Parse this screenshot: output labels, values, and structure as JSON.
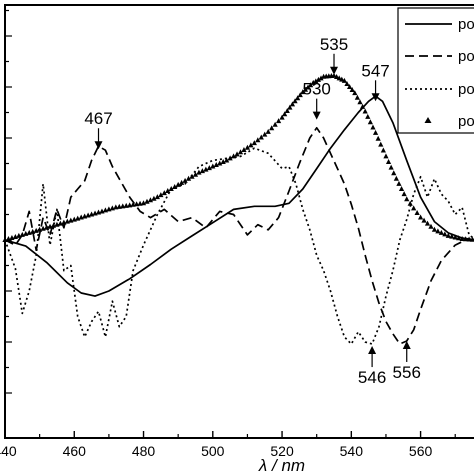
{
  "chart_data": {
    "type": "line",
    "title": "",
    "xlabel": "λ / nm",
    "ylabel": "",
    "xlim": [
      440,
      576
    ],
    "ylim": [
      -1.6,
      2.35
    ],
    "grid": false,
    "legend_placement": "top-right",
    "x_ticks": [
      440,
      460,
      480,
      500,
      520,
      540,
      560
    ],
    "x_tick_labels": [
      "440",
      "460",
      "480",
      "500",
      "520",
      "540",
      "560"
    ],
    "legend": [
      "po",
      "po",
      "po",
      "po"
    ],
    "annotations": [
      {
        "text": "467",
        "x": 467,
        "y": 0.88
      },
      {
        "text": "530",
        "x": 530,
        "y": 1.17
      },
      {
        "text": "535",
        "x": 535,
        "y": 1.61
      },
      {
        "text": "547",
        "x": 547,
        "y": 1.35
      },
      {
        "text": "546",
        "x": 546,
        "y": -1.03
      },
      {
        "text": "556",
        "x": 556,
        "y": -0.98
      }
    ],
    "series": [
      {
        "style": "solid",
        "x": [
          440,
          446,
          452,
          458,
          462,
          466,
          470,
          476,
          482,
          488,
          494,
          500,
          506,
          512,
          518,
          522,
          526,
          530,
          534,
          538,
          542,
          545,
          547,
          549,
          552,
          556,
          560,
          564,
          568,
          572,
          576
        ],
        "y": [
          0.0,
          -0.06,
          -0.22,
          -0.42,
          -0.52,
          -0.55,
          -0.5,
          -0.38,
          -0.24,
          -0.09,
          0.04,
          0.17,
          0.3,
          0.33,
          0.33,
          0.36,
          0.5,
          0.7,
          0.9,
          1.08,
          1.25,
          1.36,
          1.41,
          1.36,
          1.15,
          0.78,
          0.42,
          0.18,
          0.07,
          0.02,
          0.0
        ]
      },
      {
        "style": "dashed",
        "x": [
          440,
          443,
          445,
          447,
          449,
          451,
          453,
          455,
          457,
          459,
          461,
          463,
          465,
          467,
          469,
          471,
          473,
          476,
          479,
          482,
          486,
          490,
          494,
          498,
          502,
          506,
          510,
          513,
          516,
          519,
          522,
          525,
          528,
          530,
          532,
          534,
          536,
          538,
          540,
          542,
          544,
          546,
          548,
          550,
          552,
          554,
          556,
          558,
          560,
          563,
          566,
          570,
          573,
          576
        ],
        "y": [
          0.0,
          -0.05,
          0.05,
          0.28,
          -0.1,
          0.22,
          0.05,
          0.3,
          0.12,
          0.42,
          0.5,
          0.58,
          0.78,
          0.92,
          0.88,
          0.72,
          0.6,
          0.42,
          0.28,
          0.22,
          0.3,
          0.18,
          0.22,
          0.12,
          0.28,
          0.25,
          0.05,
          0.15,
          0.1,
          0.22,
          0.48,
          0.75,
          1.0,
          1.1,
          1.0,
          0.85,
          0.7,
          0.55,
          0.35,
          0.12,
          -0.15,
          -0.4,
          -0.62,
          -0.8,
          -0.92,
          -1.02,
          -0.99,
          -0.88,
          -0.68,
          -0.4,
          -0.2,
          -0.05,
          0.0,
          0.0
        ]
      },
      {
        "style": "dotted",
        "x": [
          440,
          443,
          445,
          447,
          449,
          451,
          453,
          455,
          457,
          459,
          461,
          463,
          465,
          467,
          469,
          471,
          473,
          475,
          477,
          480,
          484,
          488,
          492,
          496,
          500,
          504,
          508,
          512,
          516,
          520,
          522,
          524,
          526,
          528,
          530,
          532,
          534,
          536,
          538,
          540,
          542,
          544,
          546,
          548,
          550,
          552,
          554,
          556,
          558,
          560,
          562,
          564,
          566,
          568,
          570,
          572,
          574,
          576
        ],
        "y": [
          0.0,
          -0.28,
          -0.72,
          -0.5,
          -0.15,
          0.55,
          -0.05,
          0.3,
          -0.3,
          -0.25,
          -0.75,
          -0.95,
          -0.8,
          -0.7,
          -0.95,
          -0.6,
          -0.85,
          -0.75,
          -0.3,
          -0.05,
          0.25,
          0.5,
          0.55,
          0.72,
          0.78,
          0.8,
          0.82,
          0.9,
          0.85,
          0.7,
          0.72,
          0.55,
          0.3,
          0.1,
          -0.15,
          -0.3,
          -0.5,
          -0.75,
          -0.95,
          -1.02,
          -0.9,
          -1.0,
          -1.02,
          -0.85,
          -0.55,
          -0.3,
          0.0,
          0.2,
          0.45,
          0.62,
          0.42,
          0.6,
          0.45,
          0.38,
          0.25,
          0.32,
          0.05,
          0.0
        ]
      },
      {
        "style": "triangles",
        "x": [
          440,
          444,
          448,
          452,
          456,
          460,
          464,
          468,
          472,
          476,
          480,
          484,
          488,
          492,
          496,
          500,
          504,
          508,
          512,
          516,
          520,
          523,
          526,
          529,
          532,
          535,
          538,
          541,
          544,
          547,
          550,
          553,
          556,
          560,
          564,
          568,
          572,
          576
        ],
        "y": [
          0.0,
          0.04,
          0.08,
          0.12,
          0.16,
          0.2,
          0.24,
          0.28,
          0.32,
          0.34,
          0.36,
          0.42,
          0.5,
          0.58,
          0.66,
          0.72,
          0.78,
          0.86,
          0.95,
          1.06,
          1.2,
          1.33,
          1.45,
          1.54,
          1.6,
          1.61,
          1.56,
          1.44,
          1.26,
          1.05,
          0.82,
          0.6,
          0.4,
          0.22,
          0.1,
          0.04,
          0.01,
          0.0
        ]
      }
    ]
  }
}
